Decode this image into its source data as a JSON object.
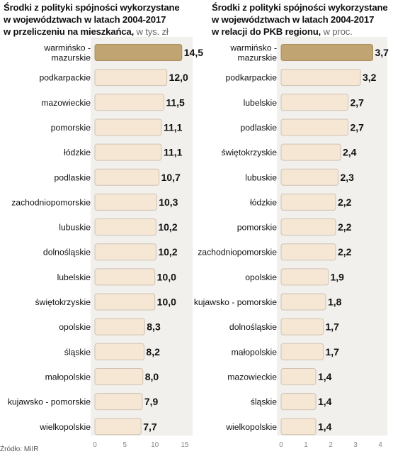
{
  "charts": [
    {
      "id": "left",
      "title_lines": [
        "Środki z polityki spójności wykorzystane",
        "w województwach w latach 2004-2017",
        "w przeliczeniu na mieszkańca,"
      ],
      "unit": "w tys. zł"
    },
    {
      "id": "right",
      "title_lines": [
        "Środki z polityki spójności wykorzystane",
        "w województwach w latach 2004-2017",
        "w relacji do PKB regionu,"
      ],
      "unit": "w proc."
    }
  ],
  "source": "Źródło: MiIR",
  "colors": {
    "bar": "#f6e6d4",
    "bar_highlight": "#c0a573",
    "background": "#f2f0ec"
  },
  "chart_data": [
    {
      "type": "bar",
      "orientation": "horizontal",
      "title": "Środki z polityki spójności wykorzystane w województwach w latach 2004-2017 w przeliczeniu na mieszkańca, w tys. zł",
      "categories": [
        "warmińsko -\nmazurskie",
        "podkarpackie",
        "mazowieckie",
        "pomorskie",
        "łódzkie",
        "podlaskie",
        "zachodniopomorskie",
        "lubuskie",
        "dolnośląskie",
        "lubelskie",
        "świętokrzyskie",
        "opolskie",
        "śląskie",
        "małopolskie",
        "kujawsko - pomorskie",
        "wielkopolskie"
      ],
      "values": [
        14.5,
        12.0,
        11.5,
        11.1,
        11.1,
        10.7,
        10.3,
        10.2,
        10.2,
        10.0,
        10.0,
        8.3,
        8.2,
        8.0,
        7.9,
        7.7
      ],
      "value_labels": [
        "14,5",
        "12,0",
        "11,5",
        "11,1",
        "11,1",
        "10,7",
        "10,3",
        "10,2",
        "10,2",
        "10,0",
        "10,0",
        "8,3",
        "8,2",
        "8,0",
        "7,9",
        "7,7"
      ],
      "xlim": [
        0,
        15
      ],
      "xticks": [
        0,
        5,
        10,
        15
      ],
      "highlight": "warmińsko -\nmazurskie"
    },
    {
      "type": "bar",
      "orientation": "horizontal",
      "title": "Środki z polityki spójności wykorzystane w województwach w latach 2004-2017 w relacji do PKB regionu, w proc.",
      "categories": [
        "warmińsko -\nmazurskie",
        "podkarpackie",
        "lubelskie",
        "podlaskie",
        "świętokrzyskie",
        "lubuskie",
        "łódzkie",
        "pomorskie",
        "zachodniopomorskie",
        "opolskie",
        "kujawsko - pomorskie",
        "dolnośląskie",
        "małopolskie",
        "mazowieckie",
        "śląskie",
        "wielkopolskie"
      ],
      "values": [
        3.7,
        3.2,
        2.7,
        2.7,
        2.4,
        2.3,
        2.2,
        2.2,
        2.2,
        1.9,
        1.8,
        1.7,
        1.7,
        1.4,
        1.4,
        1.4
      ],
      "value_labels": [
        "3,7",
        "3,2",
        "2,7",
        "2,7",
        "2,4",
        "2,3",
        "2,2",
        "2,2",
        "2,2",
        "1,9",
        "1,8",
        "1,7",
        "1,7",
        "1,4",
        "1,4",
        "1,4"
      ],
      "xlim": [
        0,
        4
      ],
      "xticks": [
        0,
        1,
        2,
        3,
        4
      ],
      "highlight": "warmińsko -\nmazurskie"
    }
  ]
}
